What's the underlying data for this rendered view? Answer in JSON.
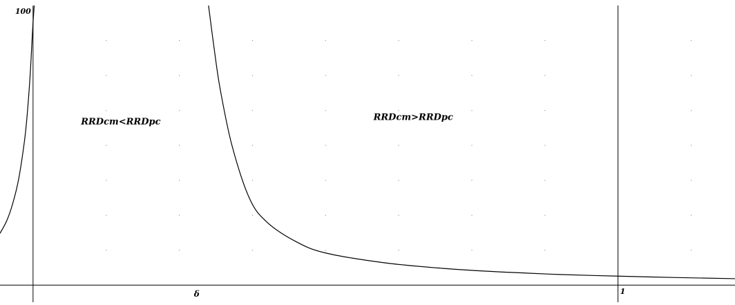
{
  "chart_data": {
    "type": "line",
    "title": "",
    "xlabel": "δ",
    "ylabel": "",
    "xlim": [
      -0.0565,
      1.2
    ],
    "ylim": [
      -1.43,
      100
    ],
    "y_tick_labels": [
      {
        "value": 100,
        "label": "100"
      }
    ],
    "x_tick_labels": [
      {
        "value": 1,
        "label": "1"
      }
    ],
    "grid": "dotted",
    "annotations": [
      {
        "text": "RRDcm<RRDpc",
        "x": 0.15,
        "y": 57.5
      },
      {
        "text": "RRDcm>RRDpc",
        "x": 0.65,
        "y": 59
      }
    ],
    "series": [
      {
        "segment": "left",
        "x": [
          -0.0565,
          -0.045,
          -0.035,
          -0.025,
          -0.015,
          -0.01,
          -0.005,
          -0.002,
          0.0,
          0.002
        ],
        "y": [
          18.5,
          23,
          29,
          37.5,
          51,
          61,
          75,
          86.5,
          94,
          100
        ]
      },
      {
        "segment": "right",
        "x": [
          0.3,
          0.31,
          0.32,
          0.34,
          0.37,
          0.4,
          0.45,
          0.5,
          0.6,
          0.7,
          0.8,
          0.9,
          1.0,
          1.1,
          1.2
        ],
        "y": [
          100,
          84,
          70,
          50,
          31,
          22.5,
          15.5,
          11.5,
          8,
          6,
          4.7,
          3.8,
          3.2,
          2.7,
          2.3
        ]
      }
    ]
  },
  "colors": {
    "curve": "#000000",
    "axis": "#000000",
    "grid": "#9a9a9a"
  }
}
